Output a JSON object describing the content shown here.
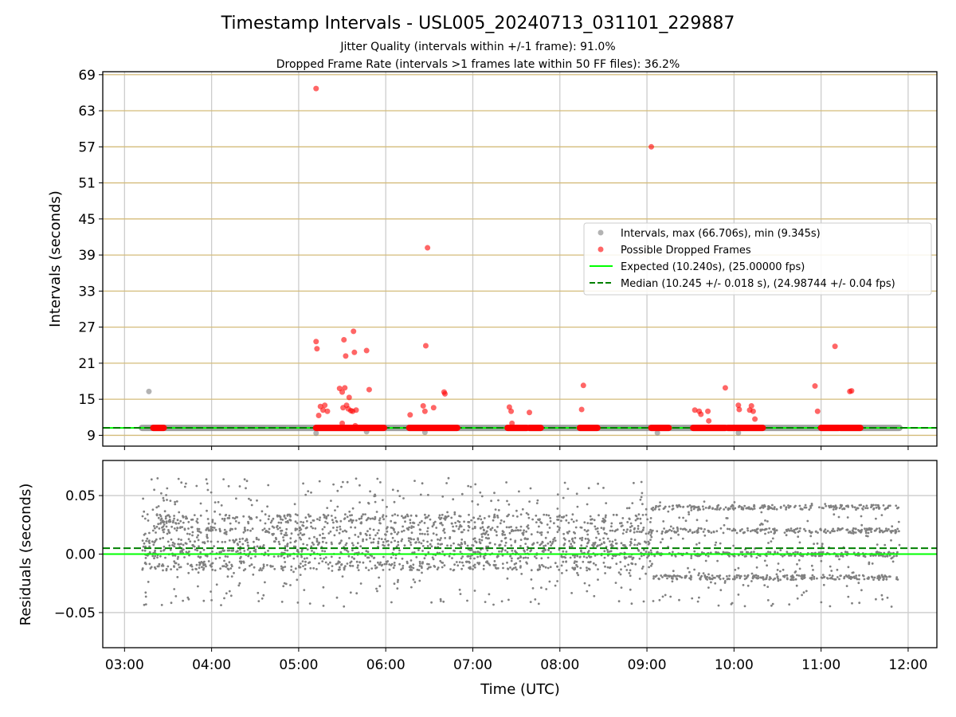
{
  "chart_data": {
    "type": "scatter",
    "title": "Timestamp Intervals - USL005_20240713_031101_229887",
    "subtitle_lines": [
      "Jitter Quality (intervals within +/-1 frame): 91.0%",
      "Dropped Frame Rate (intervals >1 frames late within 50 FF files): 36.2%"
    ],
    "xlabel": "Time (UTC)",
    "xlim_hours": [
      2.75,
      12.33
    ],
    "x_ticks": [
      "03:00",
      "04:00",
      "05:00",
      "06:00",
      "07:00",
      "08:00",
      "09:00",
      "10:00",
      "11:00",
      "12:00"
    ],
    "grid": true,
    "panels": [
      {
        "name": "intervals",
        "ylabel": "Intervals (seconds)",
        "ylim": [
          7.2,
          69.5
        ],
        "y_ticks": [
          "9",
          "15",
          "21",
          "27",
          "33",
          "39",
          "45",
          "51",
          "57",
          "63",
          "69"
        ],
        "horizontal_gridlines_color": "#d4bc7a",
        "legend_position": "right",
        "legend": [
          "Intervals, max (66.706s), min (9.345s)",
          "Possible Dropped Frames",
          "Expected (10.240s), (25.00000 fps)",
          "Median (10.245 +/- 0.018 s), (24.98744 +/- 0.04 fps)"
        ],
        "lines": [
          {
            "label": "Expected",
            "y": 10.24,
            "color": "#00ff00",
            "style": "solid"
          },
          {
            "label": "Median",
            "y": 10.245,
            "color": "#008000",
            "style": "dashed"
          }
        ],
        "series": [
          {
            "name": "Intervals",
            "color": "#808080",
            "baseline_band": {
              "x_range_hours": [
                3.2,
                11.9
              ],
              "y": 10.24
            },
            "outliers": [
              {
                "x": 3.28,
                "y": 16.3
              },
              {
                "x": 5.2,
                "y": 9.35
              },
              {
                "x": 5.78,
                "y": 9.6
              },
              {
                "x": 6.45,
                "y": 9.5
              },
              {
                "x": 9.12,
                "y": 9.4
              },
              {
                "x": 10.05,
                "y": 9.4
              }
            ]
          },
          {
            "name": "Possible Dropped Frames",
            "color": "#ff0000",
            "baseline_segments_hours": [
              [
                3.33,
                3.45
              ],
              [
                5.2,
                5.98
              ],
              [
                6.27,
                6.82
              ],
              [
                7.4,
                7.62
              ],
              [
                7.65,
                7.78
              ],
              [
                8.23,
                8.43
              ],
              [
                9.05,
                9.25
              ],
              [
                9.53,
                9.9
              ],
              [
                9.93,
                10.33
              ],
              [
                11.0,
                11.2
              ],
              [
                11.22,
                11.45
              ]
            ],
            "points": [
              {
                "x": 5.2,
                "y": 66.7
              },
              {
                "x": 5.2,
                "y": 24.6
              },
              {
                "x": 5.21,
                "y": 23.4
              },
              {
                "x": 5.23,
                "y": 12.3
              },
              {
                "x": 5.25,
                "y": 13.8
              },
              {
                "x": 5.28,
                "y": 13.2
              },
              {
                "x": 5.3,
                "y": 14.0
              },
              {
                "x": 5.33,
                "y": 13.0
              },
              {
                "x": 5.35,
                "y": 10.3
              },
              {
                "x": 5.47,
                "y": 16.8
              },
              {
                "x": 5.5,
                "y": 16.2
              },
              {
                "x": 5.51,
                "y": 13.6
              },
              {
                "x": 5.52,
                "y": 24.9
              },
              {
                "x": 5.53,
                "y": 16.9
              },
              {
                "x": 5.54,
                "y": 22.2
              },
              {
                "x": 5.55,
                "y": 14.0
              },
              {
                "x": 5.57,
                "y": 13.4
              },
              {
                "x": 5.58,
                "y": 15.3
              },
              {
                "x": 5.6,
                "y": 13.1
              },
              {
                "x": 5.62,
                "y": 13.0
              },
              {
                "x": 5.63,
                "y": 26.3
              },
              {
                "x": 5.64,
                "y": 22.8
              },
              {
                "x": 5.66,
                "y": 13.2
              },
              {
                "x": 5.5,
                "y": 11.0
              },
              {
                "x": 5.65,
                "y": 10.6
              },
              {
                "x": 5.78,
                "y": 23.1
              },
              {
                "x": 5.81,
                "y": 16.6
              },
              {
                "x": 6.28,
                "y": 12.4
              },
              {
                "x": 6.43,
                "y": 13.9
              },
              {
                "x": 6.45,
                "y": 13.0
              },
              {
                "x": 6.46,
                "y": 23.9
              },
              {
                "x": 6.48,
                "y": 40.2
              },
              {
                "x": 6.55,
                "y": 13.6
              },
              {
                "x": 6.67,
                "y": 16.2
              },
              {
                "x": 6.68,
                "y": 15.9
              },
              {
                "x": 7.42,
                "y": 13.7
              },
              {
                "x": 7.44,
                "y": 13.0
              },
              {
                "x": 7.45,
                "y": 11.0
              },
              {
                "x": 7.65,
                "y": 12.8
              },
              {
                "x": 8.25,
                "y": 13.3
              },
              {
                "x": 8.27,
                "y": 17.3
              },
              {
                "x": 9.05,
                "y": 57.0
              },
              {
                "x": 9.55,
                "y": 13.2
              },
              {
                "x": 9.6,
                "y": 13.0
              },
              {
                "x": 9.62,
                "y": 12.5
              },
              {
                "x": 9.7,
                "y": 13.0
              },
              {
                "x": 9.71,
                "y": 11.4
              },
              {
                "x": 9.9,
                "y": 16.9
              },
              {
                "x": 10.05,
                "y": 14.0
              },
              {
                "x": 10.06,
                "y": 13.3
              },
              {
                "x": 10.18,
                "y": 13.2
              },
              {
                "x": 10.2,
                "y": 13.9
              },
              {
                "x": 10.22,
                "y": 13.0
              },
              {
                "x": 10.24,
                "y": 11.7
              },
              {
                "x": 10.93,
                "y": 17.2
              },
              {
                "x": 10.96,
                "y": 13.0
              },
              {
                "x": 11.16,
                "y": 23.8
              },
              {
                "x": 11.33,
                "y": 16.3
              },
              {
                "x": 11.35,
                "y": 16.4
              }
            ]
          }
        ]
      },
      {
        "name": "residuals",
        "ylabel": "Residuals (seconds)",
        "ylim": [
          -0.08,
          0.08
        ],
        "y_ticks": [
          0.05,
          0.0,
          -0.05
        ],
        "y_tick_labels": [
          "0.05",
          "0.00",
          "−0.05"
        ],
        "lines": [
          {
            "label": "Expected",
            "y": 0.0,
            "color": "#00ff00",
            "style": "solid"
          },
          {
            "label": "Median",
            "y": 0.005,
            "color": "#008000",
            "style": "dashed"
          }
        ],
        "series": [
          {
            "name": "Residuals",
            "color": "#808080",
            "x_range_hours": [
              3.2,
              11.9
            ],
            "approx_count": 3000,
            "before_09_00": {
              "levels": [
                -0.01,
                0.0,
                0.01,
                0.02,
                0.03
              ],
              "range": [
                -0.045,
                0.065
              ]
            },
            "after_09_00": {
              "levels": [
                -0.02,
                0.0,
                0.02,
                0.04
              ],
              "range": [
                -0.045,
                0.045
              ]
            }
          }
        ]
      }
    ]
  }
}
